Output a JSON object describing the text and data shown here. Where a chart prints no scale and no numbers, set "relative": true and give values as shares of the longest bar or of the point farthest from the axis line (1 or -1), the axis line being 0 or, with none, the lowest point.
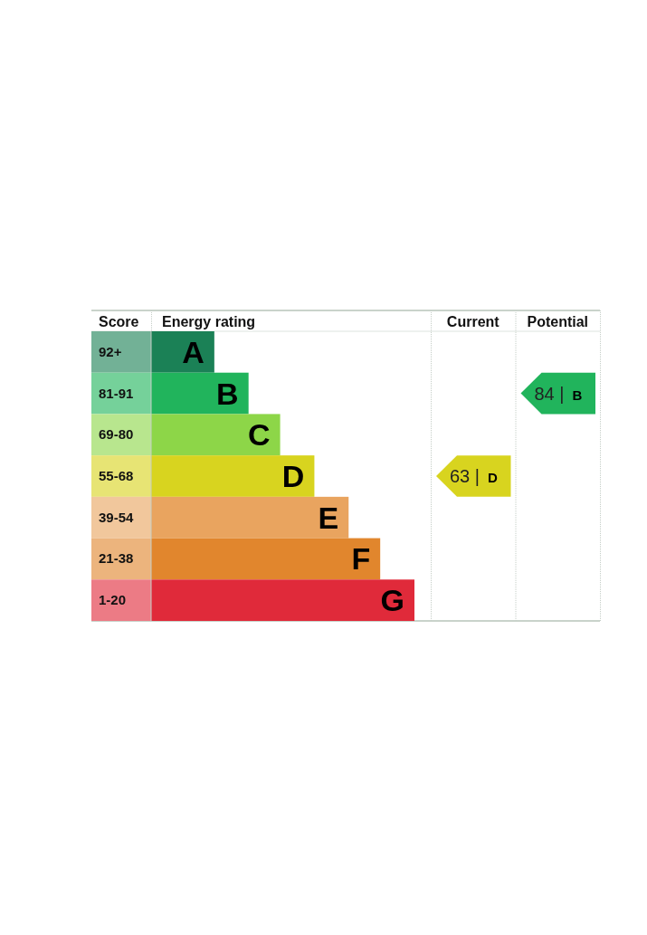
{
  "chart_data": {
    "type": "bar",
    "orientation": "horizontal",
    "relative": true,
    "xlabel": "Energy rating",
    "ylabel": "Score",
    "categories": [
      "92+",
      "81-91",
      "69-80",
      "55-68",
      "39-54",
      "21-38",
      "1-20"
    ],
    "values": [
      0.24,
      0.37,
      0.49,
      0.62,
      0.75,
      0.87,
      1
    ],
    "colors": [
      "#1b8156",
      "#21b45c",
      "#8dd648",
      "#d8d41f",
      "#e9a45f",
      "#e1862d",
      "#e02a3a"
    ],
    "annotations": [
      "Current",
      "Potential",
      "63 | D",
      "84 | B",
      {
        "text": "A",
        "x": 0.24,
        "y": "92+"
      },
      {
        "text": "B",
        "x": 0.37,
        "y": "81-91"
      },
      {
        "text": "C",
        "x": 0.49,
        "y": "69-80"
      },
      {
        "text": "D",
        "x": 0.62,
        "y": "55-68"
      },
      {
        "text": "E",
        "x": 0.75,
        "y": "39-54"
      },
      {
        "text": "F",
        "x": 0.87,
        "y": "21-38"
      },
      {
        "text": "G",
        "x": 1,
        "y": "1-20"
      }
    ]
  }
}
